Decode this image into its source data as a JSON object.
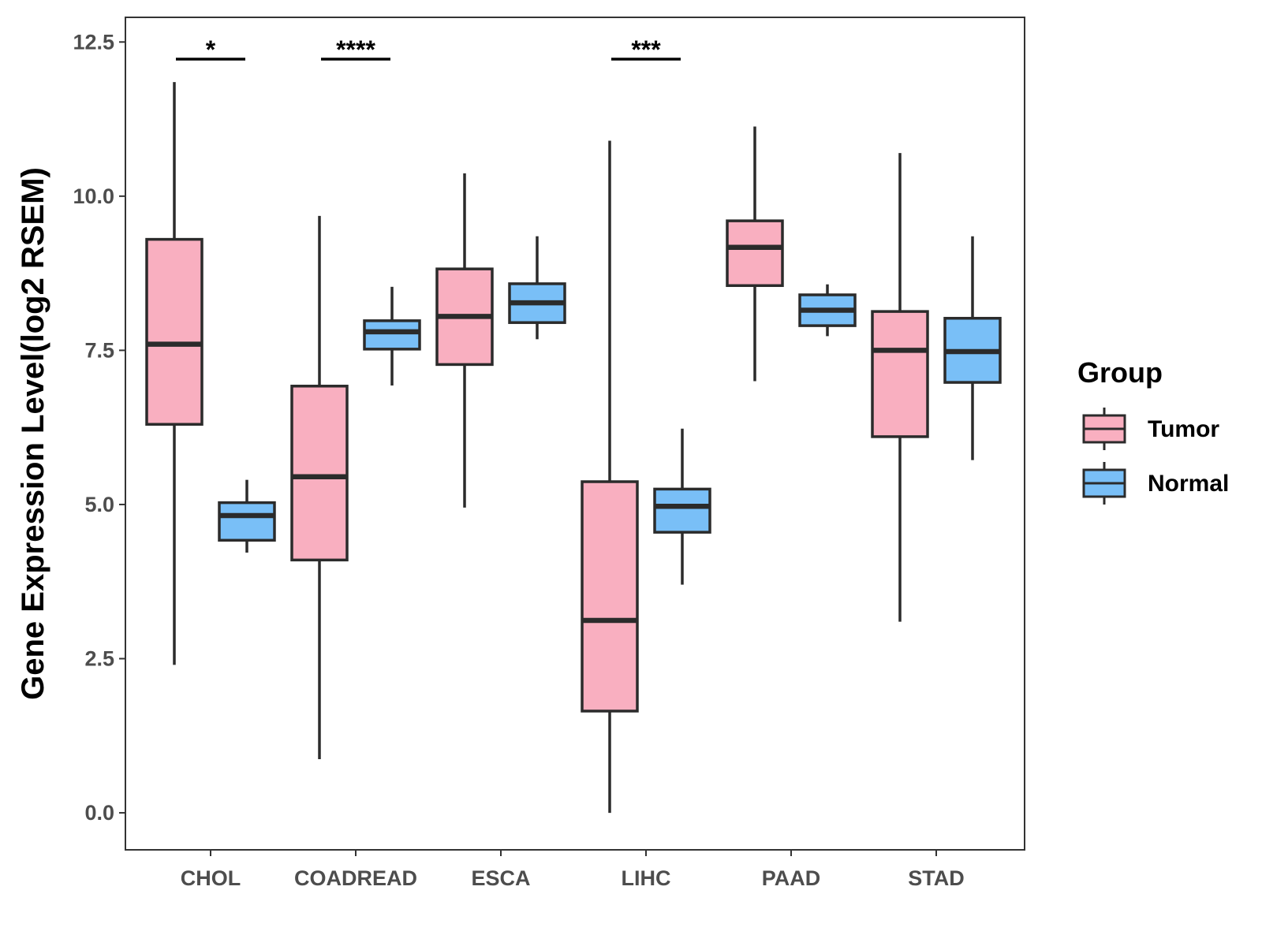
{
  "chart_data": {
    "type": "boxplot",
    "title": "",
    "xlabel": "",
    "ylabel": "Gene Expression Level(log2 RSEM)",
    "ylim": [
      -0.6,
      12.9
    ],
    "yticks": [
      "0.0",
      "2.5",
      "5.0",
      "7.5",
      "10.0",
      "12.5"
    ],
    "categories": [
      "CHOL",
      "COADREAD",
      "ESCA",
      "LIHC",
      "PAAD",
      "STAD"
    ],
    "legend": {
      "title": "Group",
      "position": "right",
      "entries": [
        {
          "name": "Tumor",
          "color": "#f9afc0"
        },
        {
          "name": "Normal",
          "color": "#79bff7"
        }
      ]
    },
    "series": [
      {
        "name": "Tumor",
        "color": "#f9afc0",
        "boxes": [
          {
            "category": "CHOL",
            "min": 2.4,
            "q1": 6.3,
            "median": 7.6,
            "q3": 9.3,
            "max": 11.85
          },
          {
            "category": "COADREAD",
            "min": 0.87,
            "q1": 4.1,
            "median": 5.45,
            "q3": 6.92,
            "max": 9.68
          },
          {
            "category": "ESCA",
            "min": 4.95,
            "q1": 7.27,
            "median": 8.05,
            "q3": 8.82,
            "max": 10.37
          },
          {
            "category": "LIHC",
            "min": 0.0,
            "q1": 1.65,
            "median": 3.12,
            "q3": 5.37,
            "max": 10.9
          },
          {
            "category": "PAAD",
            "min": 7.0,
            "q1": 8.55,
            "median": 9.17,
            "q3": 9.6,
            "max": 11.13
          },
          {
            "category": "STAD",
            "min": 3.1,
            "q1": 6.1,
            "median": 7.5,
            "q3": 8.13,
            "max": 10.7
          }
        ]
      },
      {
        "name": "Normal",
        "color": "#79bff7",
        "boxes": [
          {
            "category": "CHOL",
            "min": 4.22,
            "q1": 4.42,
            "median": 4.82,
            "q3": 5.03,
            "max": 5.4
          },
          {
            "category": "COADREAD",
            "min": 6.93,
            "q1": 7.52,
            "median": 7.8,
            "q3": 7.98,
            "max": 8.53
          },
          {
            "category": "ESCA",
            "min": 7.68,
            "q1": 7.95,
            "median": 8.27,
            "q3": 8.58,
            "max": 9.35
          },
          {
            "category": "LIHC",
            "min": 3.7,
            "q1": 4.55,
            "median": 4.97,
            "q3": 5.25,
            "max": 6.23
          },
          {
            "category": "PAAD",
            "min": 7.73,
            "q1": 7.9,
            "median": 8.15,
            "q3": 8.4,
            "max": 8.57
          },
          {
            "category": "STAD",
            "min": 5.72,
            "q1": 6.98,
            "median": 7.48,
            "q3": 8.02,
            "max": 9.35
          }
        ]
      }
    ],
    "annotations": [
      {
        "category": "CHOL",
        "label": "*"
      },
      {
        "category": "COADREAD",
        "label": "****"
      },
      {
        "category": "LIHC",
        "label": "***"
      }
    ]
  }
}
